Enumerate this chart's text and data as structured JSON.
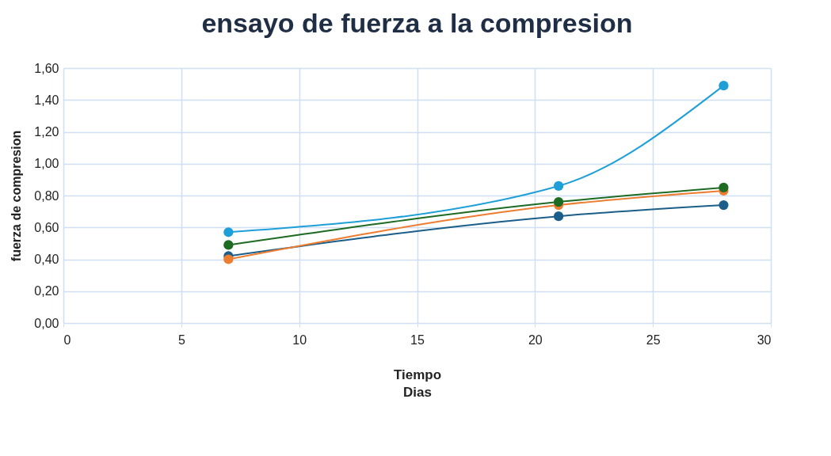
{
  "chart_data": {
    "type": "line",
    "title": "ensayo de fuerza a la compresion",
    "xlabel": "Tiempo\nDias",
    "ylabel": "fuerza de compresion",
    "x": [
      7,
      21,
      28
    ],
    "series": [
      {
        "color": "#1b5e8a",
        "values": [
          0.42,
          0.67,
          0.74
        ]
      },
      {
        "color": "#ed7d31",
        "values": [
          0.4,
          0.74,
          0.83
        ]
      },
      {
        "color": "#1e6b24",
        "values": [
          0.49,
          0.76,
          0.85
        ]
      },
      {
        "color": "#1f9fd8",
        "values": [
          0.57,
          0.86,
          1.49
        ]
      }
    ],
    "xlim": [
      0,
      30
    ],
    "xticks": [
      0,
      5,
      10,
      15,
      20,
      25,
      30
    ],
    "ylim": [
      0,
      1.6
    ],
    "yticks": [
      {
        "value": 0,
        "label": "0,00"
      },
      {
        "value": 0.2,
        "label": "0,20"
      },
      {
        "value": 0.4,
        "label": "0,40"
      },
      {
        "value": 0.6,
        "label": "0,60"
      },
      {
        "value": 0.8,
        "label": "0,80"
      },
      {
        "value": 1.0,
        "label": "1,00"
      },
      {
        "value": 1.2,
        "label": "1,20"
      },
      {
        "value": 1.4,
        "label": "1,40"
      },
      {
        "value": 1.6,
        "label": "1,60"
      }
    ],
    "grid": true,
    "marker": "circle",
    "line_style": "solid"
  }
}
